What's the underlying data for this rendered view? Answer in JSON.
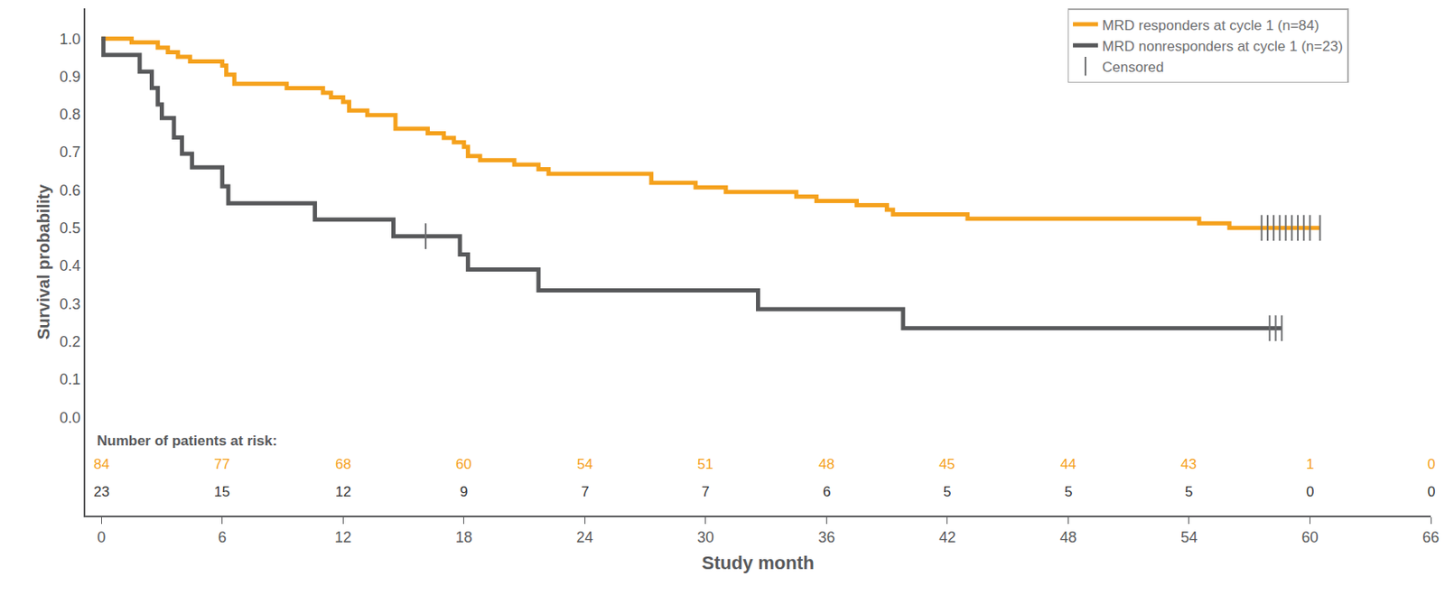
{
  "chart_data": {
    "type": "line",
    "xlabel": "Study month",
    "ylabel": "Survival probability",
    "xlim": [
      -0.8,
      66
    ],
    "xticks": [
      0,
      6,
      12,
      18,
      24,
      30,
      36,
      42,
      48,
      54,
      60,
      66
    ],
    "ylim": [
      -0.26,
      1.08
    ],
    "yticks": [
      {
        "value": 0,
        "label": "0.0"
      },
      0.1,
      0.2,
      0.3,
      0.4,
      0.5,
      0.6,
      0.7,
      0.8,
      0.9,
      {
        "value": 1,
        "label": "1.0"
      }
    ],
    "grid": false,
    "legend": "top right",
    "series": [
      {
        "name": "MRD responders at cycle 1 (n=84)",
        "type": "line",
        "line_style": "step",
        "color": "#f5a11c",
        "x": [
          0,
          1.5,
          2.8,
          3.3,
          3.8,
          4.4,
          6.0,
          6.2,
          6.6,
          9.2,
          11.0,
          11.4,
          12.0,
          12.3,
          13.2,
          14.6,
          16.2,
          17.0,
          17.5,
          18.0,
          18.2,
          18.8,
          20.5,
          21.7,
          22.2,
          27.3,
          29.5,
          31.0,
          34.5,
          35.5,
          37.5,
          39.0,
          39.3,
          43.0,
          54.5,
          56.0,
          60.5
        ],
        "values": [
          1.0,
          0.99,
          0.976,
          0.964,
          0.952,
          0.94,
          0.929,
          0.905,
          0.881,
          0.869,
          0.857,
          0.845,
          0.833,
          0.81,
          0.798,
          0.762,
          0.75,
          0.738,
          0.726,
          0.714,
          0.69,
          0.679,
          0.667,
          0.655,
          0.643,
          0.619,
          0.607,
          0.595,
          0.583,
          0.571,
          0.56,
          0.548,
          0.536,
          0.524,
          0.512,
          0.5,
          0.5
        ]
      },
      {
        "name": "MRD nonresponders at cycle 1 (n=23)",
        "type": "line",
        "line_style": "step",
        "color": "#58595b",
        "x": [
          0,
          0.1,
          1.9,
          2.5,
          2.8,
          3.0,
          3.6,
          4.0,
          4.5,
          6.0,
          6.3,
          10.6,
          14.5,
          17.8,
          18.2,
          21.7,
          32.6,
          39.8,
          58.6
        ],
        "values": [
          1.0,
          0.957,
          0.913,
          0.87,
          0.826,
          0.79,
          0.739,
          0.696,
          0.66,
          0.61,
          0.565,
          0.522,
          0.478,
          0.43,
          0.39,
          0.335,
          0.285,
          0.235,
          0.235
        ]
      },
      {
        "name": "Censored",
        "type": "scatter",
        "marker": "line-ns",
        "color": "#6d6e70",
        "x": [
          16.1,
          57.6,
          57.9,
          58.2,
          58.5,
          58.8,
          59.1,
          59.4,
          59.7,
          60.0,
          60.5,
          58.0,
          58.3,
          58.6
        ],
        "values": [
          0.478,
          0.5,
          0.5,
          0.5,
          0.5,
          0.5,
          0.5,
          0.5,
          0.5,
          0.5,
          0.5,
          0.235,
          0.235,
          0.235
        ]
      }
    ],
    "risk_table": {
      "title": "Number of patients at risk:",
      "times": [
        0,
        6,
        12,
        18,
        24,
        30,
        36,
        42,
        48,
        54,
        60,
        66
      ],
      "rows": [
        {
          "color": "#f5a11c",
          "values": [
            84,
            77,
            68,
            60,
            54,
            51,
            48,
            45,
            44,
            43,
            1,
            0
          ]
        },
        {
          "color": "#333333",
          "values": [
            23,
            15,
            12,
            9,
            7,
            7,
            6,
            5,
            5,
            5,
            0,
            0
          ]
        }
      ]
    }
  }
}
